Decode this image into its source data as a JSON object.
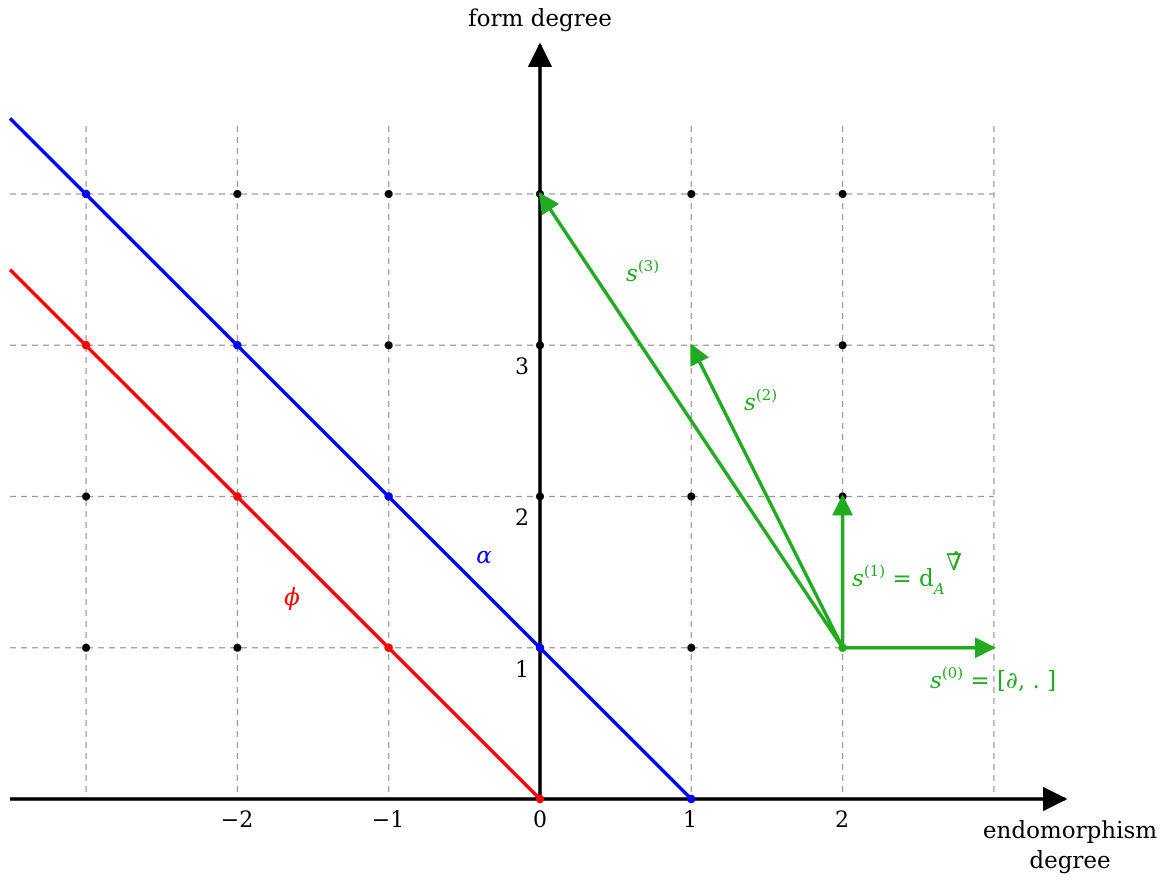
{
  "axes": {
    "x_title_line1": "endomorphism",
    "x_title_line2": "degree",
    "y_title": "form degree",
    "x_ticks": [
      "−2",
      "−1",
      "0",
      "1",
      "2"
    ],
    "y_ticks": [
      "1",
      "2",
      "3"
    ]
  },
  "lines": {
    "alpha": {
      "label": "α",
      "color": "#0000ff",
      "points": [
        [
          -3,
          4
        ],
        [
          -2,
          3
        ],
        [
          -1,
          2
        ],
        [
          0,
          1
        ],
        [
          1,
          0
        ]
      ]
    },
    "phi": {
      "label": "ϕ",
      "color": "#ff0000",
      "points": [
        [
          -3,
          3
        ],
        [
          -2,
          2
        ],
        [
          -1,
          1
        ],
        [
          0,
          0
        ]
      ]
    }
  },
  "grid_points": [
    [
      -3,
      1
    ],
    [
      -2,
      1
    ],
    [
      1,
      1
    ],
    [
      -3,
      2
    ],
    [
      0,
      2
    ],
    [
      1,
      2
    ],
    [
      2,
      2
    ],
    [
      -1,
      3
    ],
    [
      0,
      3
    ],
    [
      2,
      3
    ],
    [
      -2,
      4
    ],
    [
      -1,
      4
    ],
    [
      0,
      4
    ],
    [
      1,
      4
    ],
    [
      2,
      4
    ]
  ],
  "arrows": {
    "color": "#22aa22",
    "origin": [
      2,
      1
    ],
    "s0": {
      "sym": "s",
      "sup": "(0)",
      "rest": " = [∂, . ]",
      "to": [
        3,
        1
      ]
    },
    "s1": {
      "sym": "s",
      "sup": "(1)",
      "rest": " = d",
      "sub": "A",
      "over": "∇̂",
      "to": [
        2,
        2
      ]
    },
    "s2": {
      "sym": "s",
      "sup": "(2)",
      "to": [
        1,
        3
      ]
    },
    "s3": {
      "sym": "s",
      "sup": "(3)",
      "to": [
        0,
        4
      ]
    }
  }
}
